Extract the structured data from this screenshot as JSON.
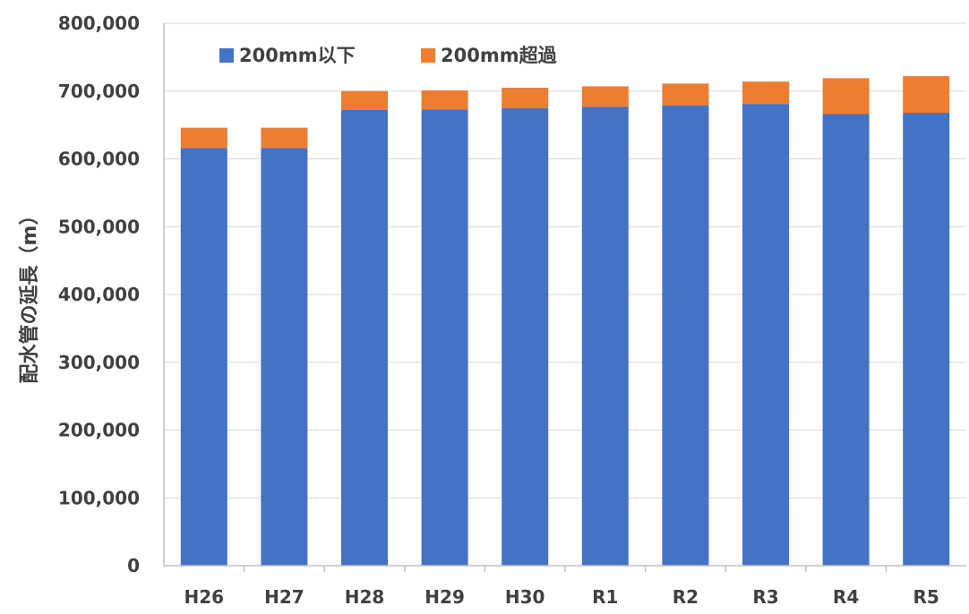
{
  "chart_data": {
    "type": "bar",
    "stacked": true,
    "categories": [
      "H26",
      "H27",
      "H28",
      "H29",
      "H30",
      "R1",
      "R2",
      "R3",
      "R4",
      "R5"
    ],
    "series": [
      {
        "name": "200mm以下",
        "color": "#4472C4",
        "values": [
          616000,
          616000,
          672000,
          673000,
          675000,
          677000,
          679000,
          681000,
          666000,
          668000
        ]
      },
      {
        "name": "200mm超過",
        "color": "#ED7D31",
        "values": [
          30000,
          30000,
          28000,
          28000,
          30000,
          30000,
          32000,
          33000,
          53000,
          54000
        ]
      }
    ],
    "title": "",
    "xlabel": "",
    "ylabel": "配水管の延長（m）",
    "ylim": [
      0,
      800000
    ],
    "yticks": [
      0,
      100000,
      200000,
      300000,
      400000,
      500000,
      600000,
      700000,
      800000
    ],
    "ytick_labels": [
      "0",
      "100,000",
      "200,000",
      "300,000",
      "400,000",
      "500,000",
      "600,000",
      "700,000",
      "800,000"
    ],
    "grid": true,
    "legend_position": "top-left"
  }
}
